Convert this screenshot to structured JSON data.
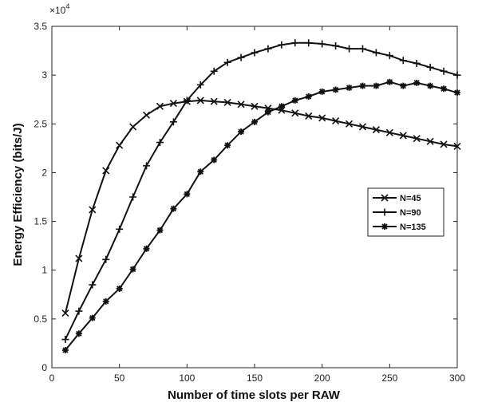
{
  "chart_data": {
    "type": "line",
    "xlabel": "Number of time slots per RAW",
    "ylabel": "Energy Efficiency (bits/J)",
    "y_multiplier_label": "×10",
    "y_multiplier_exp": "4",
    "xlim": [
      0,
      300
    ],
    "ylim": [
      0,
      3.5
    ],
    "y_scale_factor": 10000,
    "x_ticks": [
      0,
      50,
      100,
      150,
      200,
      250,
      300
    ],
    "y_ticks": [
      0,
      0.5,
      1,
      1.5,
      2,
      2.5,
      3,
      3.5
    ],
    "grid": false,
    "legend_position": "right",
    "x": [
      10,
      20,
      30,
      40,
      50,
      60,
      70,
      80,
      90,
      100,
      110,
      120,
      130,
      140,
      150,
      160,
      170,
      180,
      190,
      200,
      210,
      220,
      230,
      240,
      250,
      260,
      270,
      280,
      290,
      300
    ],
    "series": [
      {
        "name": "N=45",
        "marker": "x",
        "values": [
          0.56,
          1.12,
          1.62,
          2.02,
          2.28,
          2.47,
          2.59,
          2.68,
          2.71,
          2.73,
          2.74,
          2.73,
          2.72,
          2.7,
          2.68,
          2.66,
          2.64,
          2.61,
          2.58,
          2.56,
          2.53,
          2.5,
          2.47,
          2.44,
          2.41,
          2.38,
          2.35,
          2.32,
          2.29,
          2.27
        ]
      },
      {
        "name": "N=90",
        "marker": "+",
        "values": [
          0.29,
          0.58,
          0.85,
          1.11,
          1.42,
          1.75,
          2.07,
          2.31,
          2.52,
          2.74,
          2.9,
          3.04,
          3.13,
          3.18,
          3.23,
          3.27,
          3.31,
          3.33,
          3.33,
          3.32,
          3.3,
          3.27,
          3.27,
          3.23,
          3.2,
          3.15,
          3.12,
          3.08,
          3.04,
          3.0
        ]
      },
      {
        "name": "N=135",
        "marker": "*",
        "values": [
          0.18,
          0.35,
          0.51,
          0.68,
          0.81,
          1.01,
          1.22,
          1.41,
          1.63,
          1.78,
          2.01,
          2.13,
          2.28,
          2.42,
          2.52,
          2.62,
          2.68,
          2.74,
          2.78,
          2.83,
          2.85,
          2.87,
          2.89,
          2.89,
          2.93,
          2.89,
          2.92,
          2.89,
          2.86,
          2.82
        ]
      }
    ]
  }
}
